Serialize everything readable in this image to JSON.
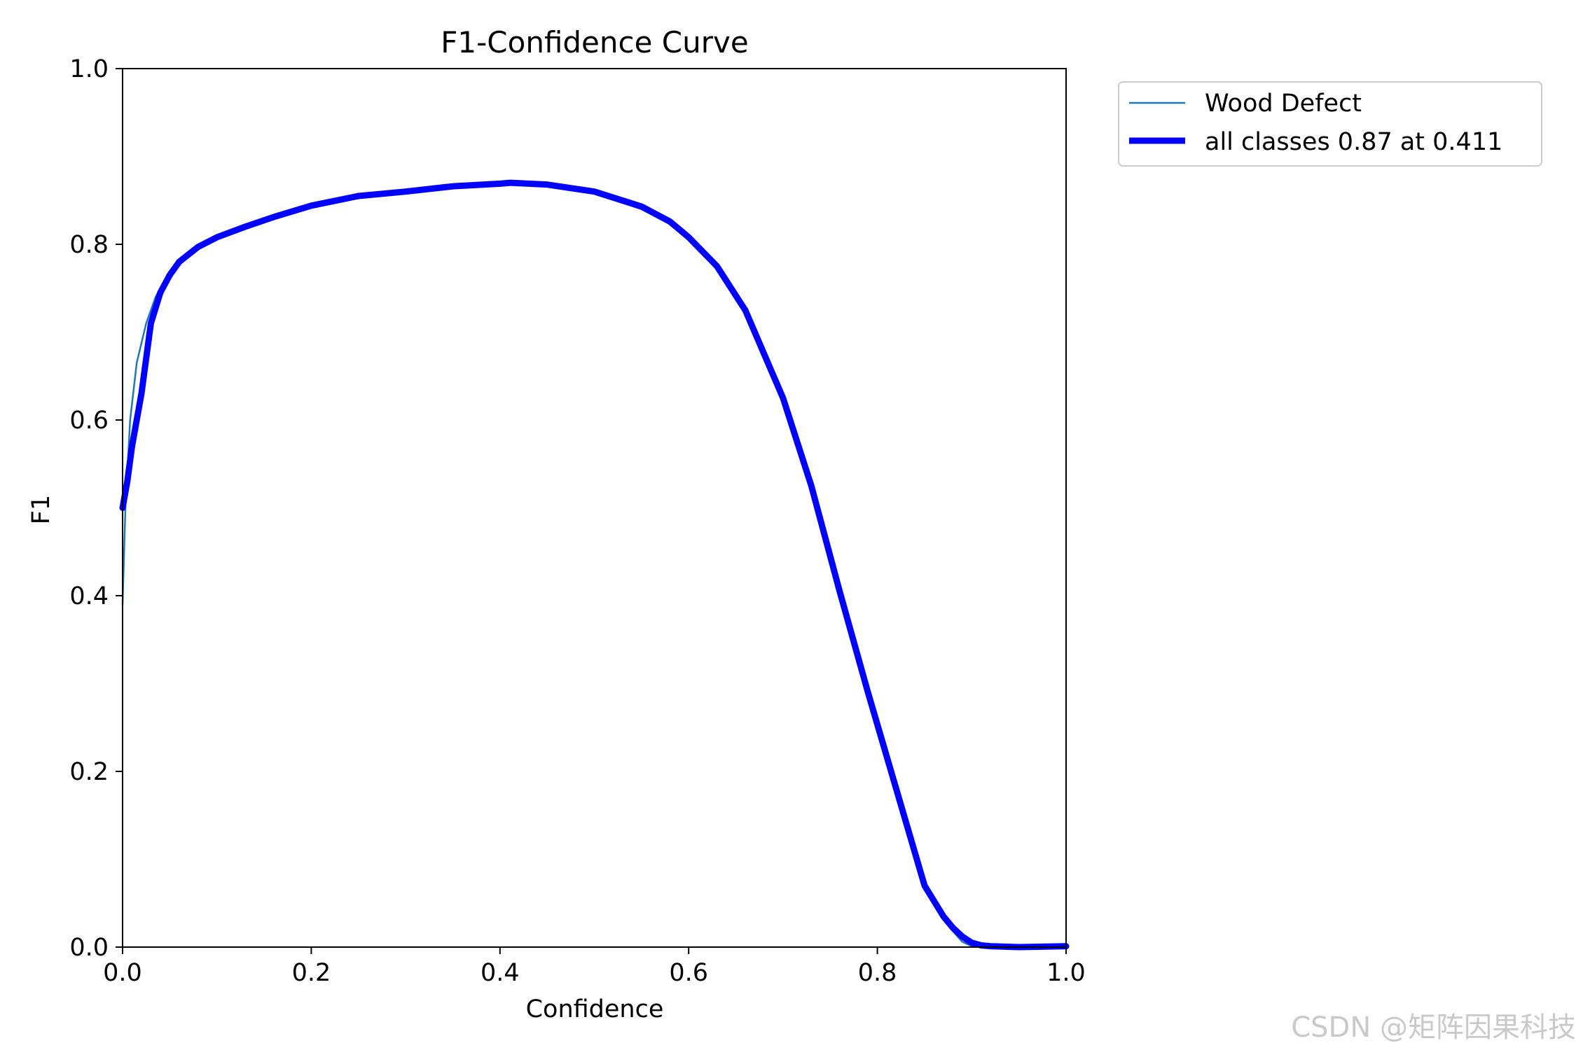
{
  "chart_data": {
    "type": "line",
    "title": "F1-Confidence Curve",
    "xlabel": "Confidence",
    "ylabel": "F1",
    "xlim": [
      0.0,
      1.0
    ],
    "ylim": [
      0.0,
      1.0
    ],
    "xticks": [
      "0.0",
      "0.2",
      "0.4",
      "0.6",
      "0.8",
      "1.0"
    ],
    "yticks": [
      "0.0",
      "0.2",
      "0.4",
      "0.6",
      "0.8",
      "1.0"
    ],
    "grid": false,
    "legend_position": "outside-upper-right",
    "series": [
      {
        "name": "Wood Defect",
        "color": "#1f77b4",
        "x": [
          0.0,
          0.003,
          0.008,
          0.015,
          0.025,
          0.035,
          0.045,
          0.06,
          0.08,
          0.1,
          0.13,
          0.16,
          0.2,
          0.25,
          0.3,
          0.35,
          0.4,
          0.45,
          0.5,
          0.55,
          0.58,
          0.6,
          0.63,
          0.66,
          0.7,
          0.73,
          0.76,
          0.79,
          0.82,
          0.85,
          0.87,
          0.88,
          0.89,
          0.9,
          0.92,
          0.95,
          1.0
        ],
        "y": [
          0.39,
          0.5,
          0.6,
          0.665,
          0.71,
          0.74,
          0.76,
          0.78,
          0.795,
          0.806,
          0.819,
          0.83,
          0.843,
          0.854,
          0.86,
          0.866,
          0.869,
          0.867,
          0.858,
          0.84,
          0.823,
          0.806,
          0.772,
          0.722,
          0.62,
          0.52,
          0.4,
          0.29,
          0.18,
          0.07,
          0.035,
          0.018,
          0.006,
          0.001,
          0.0,
          0.0,
          0.0
        ]
      },
      {
        "name": "all classes 0.87 at 0.411",
        "color": "#0000ff",
        "x": [
          0.0,
          0.005,
          0.01,
          0.02,
          0.03,
          0.04,
          0.05,
          0.06,
          0.08,
          0.1,
          0.13,
          0.16,
          0.2,
          0.25,
          0.3,
          0.35,
          0.4,
          0.411,
          0.45,
          0.5,
          0.55,
          0.58,
          0.6,
          0.63,
          0.66,
          0.7,
          0.73,
          0.76,
          0.79,
          0.82,
          0.85,
          0.87,
          0.88,
          0.89,
          0.9,
          0.91,
          0.92,
          0.95,
          1.0
        ],
        "y": [
          0.5,
          0.53,
          0.57,
          0.63,
          0.71,
          0.745,
          0.765,
          0.78,
          0.797,
          0.808,
          0.82,
          0.831,
          0.844,
          0.855,
          0.86,
          0.866,
          0.869,
          0.87,
          0.868,
          0.86,
          0.843,
          0.826,
          0.808,
          0.775,
          0.725,
          0.625,
          0.525,
          0.405,
          0.29,
          0.18,
          0.07,
          0.035,
          0.022,
          0.012,
          0.005,
          0.002,
          0.001,
          0.0,
          0.001
        ]
      }
    ],
    "watermark": "CSDN @矩阵因果科技"
  }
}
